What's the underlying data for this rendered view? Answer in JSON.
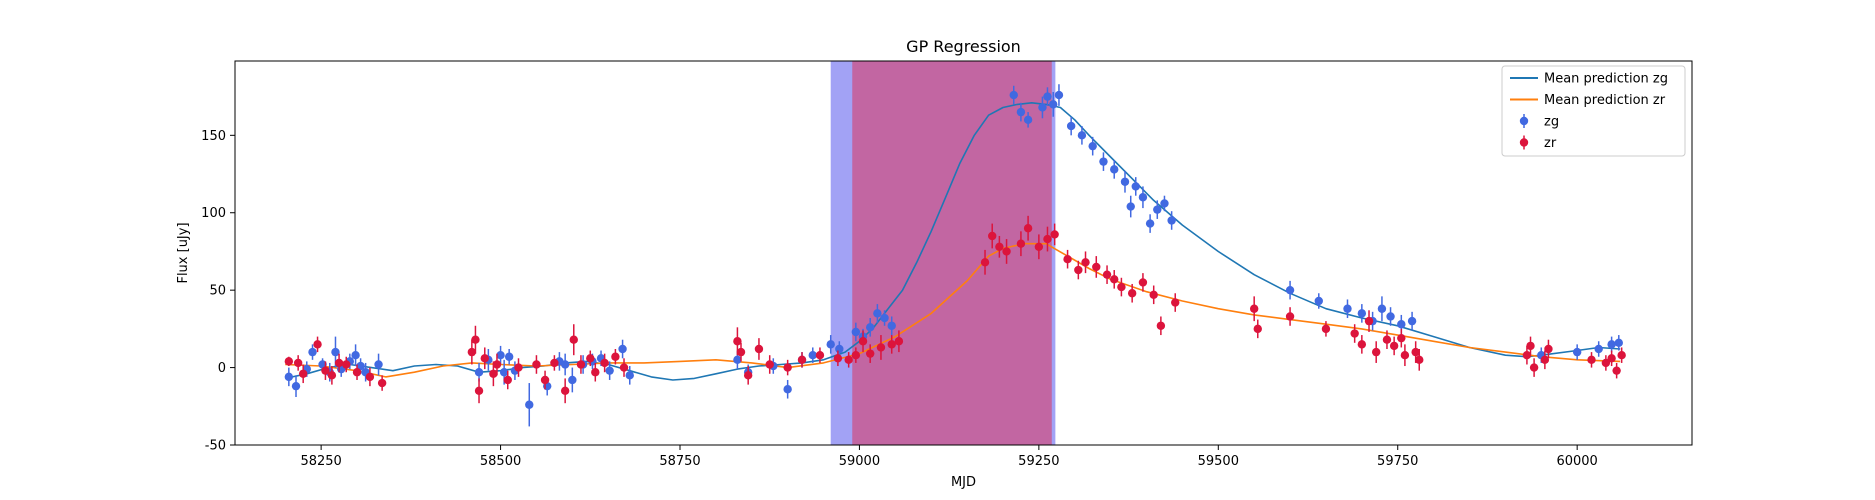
{
  "chart_data": {
    "type": "scatter",
    "title": "GP Regression",
    "xlabel": "MJD",
    "ylabel": "Flux [uJy]",
    "xlim": [
      58130,
      60160
    ],
    "ylim": [
      -50,
      198
    ],
    "xticks": [
      58250,
      58500,
      58750,
      59000,
      59250,
      59500,
      59750,
      60000
    ],
    "yticks": [
      -50,
      0,
      50,
      100,
      150
    ],
    "shaded_regions": [
      {
        "x0": 58960,
        "x1": 59273,
        "color": "#a2a2f5"
      },
      {
        "x0": 58990,
        "x1": 59268,
        "color": "#c266a2"
      }
    ],
    "legend_position": "top-right",
    "series": [
      {
        "name": "Mean prediction zg",
        "kind": "line",
        "color": "#1f77b4",
        "x": [
          58200,
          58230,
          58260,
          58290,
          58320,
          58350,
          58380,
          58410,
          58440,
          58470,
          58500,
          58530,
          58560,
          58590,
          58620,
          58650,
          58680,
          58710,
          58740,
          58770,
          58800,
          58830,
          58860,
          58890,
          58920,
          58950,
          58980,
          59000,
          59020,
          59040,
          59060,
          59080,
          59100,
          59120,
          59140,
          59160,
          59180,
          59200,
          59220,
          59240,
          59260,
          59280,
          59300,
          59320,
          59350,
          59380,
          59410,
          59450,
          59500,
          59550,
          59600,
          59650,
          59700,
          59750,
          59800,
          59850,
          59900,
          59930,
          59950,
          60000,
          60030,
          60060
        ],
        "y": [
          -7,
          -4,
          0,
          2,
          0,
          -2,
          1,
          2,
          1,
          -3,
          -2,
          0,
          1,
          3,
          4,
          2,
          -2,
          -6,
          -8,
          -7,
          -4,
          -1,
          1,
          2,
          3,
          5,
          10,
          17,
          26,
          38,
          50,
          68,
          88,
          110,
          132,
          150,
          163,
          168,
          170,
          171,
          170,
          168,
          160,
          150,
          136,
          122,
          108,
          92,
          75,
          60,
          48,
          38,
          32,
          27,
          20,
          13,
          8,
          7,
          8,
          11,
          13,
          12
        ]
      },
      {
        "name": "Mean prediction zr",
        "kind": "line",
        "color": "#ff7f0e",
        "x": [
          58200,
          58250,
          58300,
          58340,
          58380,
          58420,
          58460,
          58500,
          58550,
          58600,
          58650,
          58700,
          58750,
          58800,
          58850,
          58900,
          58950,
          59000,
          59050,
          59100,
          59150,
          59180,
          59200,
          59230,
          59260,
          59290,
          59320,
          59350,
          59400,
          59450,
          59500,
          59550,
          59600,
          59650,
          59700,
          59750,
          59800,
          59850,
          59900,
          59950,
          60000,
          60060
        ],
        "y": [
          2,
          1,
          -2,
          -6,
          -3,
          1,
          3,
          2,
          1,
          2,
          3,
          3,
          4,
          5,
          3,
          0,
          3,
          9,
          20,
          35,
          56,
          72,
          77,
          80,
          80,
          72,
          64,
          57,
          49,
          43,
          38,
          34,
          31,
          28,
          25,
          21,
          17,
          13,
          10,
          7,
          5,
          4
        ]
      },
      {
        "name": "zg",
        "kind": "errorbar",
        "color": "#4169e1",
        "points": [
          [
            58205,
            -6,
            6
          ],
          [
            58215,
            -12,
            7
          ],
          [
            58230,
            -1,
            5
          ],
          [
            58238,
            10,
            5
          ],
          [
            58252,
            2,
            4
          ],
          [
            58262,
            -3,
            6
          ],
          [
            58270,
            10,
            10
          ],
          [
            58278,
            -1,
            5
          ],
          [
            58290,
            4,
            5
          ],
          [
            58298,
            8,
            7
          ],
          [
            58305,
            1,
            5
          ],
          [
            58312,
            -3,
            6
          ],
          [
            58330,
            2,
            7
          ],
          [
            58470,
            -3,
            6
          ],
          [
            58483,
            5,
            7
          ],
          [
            58500,
            8,
            6
          ],
          [
            58505,
            -3,
            8
          ],
          [
            58512,
            7,
            5
          ],
          [
            58520,
            -2,
            6
          ],
          [
            58540,
            -24,
            14
          ],
          [
            58565,
            -12,
            6
          ],
          [
            58582,
            4,
            6
          ],
          [
            58590,
            2,
            7
          ],
          [
            58600,
            -8,
            8
          ],
          [
            58615,
            2,
            6
          ],
          [
            58628,
            4,
            5
          ],
          [
            58640,
            6,
            5
          ],
          [
            58652,
            -2,
            6
          ],
          [
            58670,
            12,
            6
          ],
          [
            58680,
            -5,
            6
          ],
          [
            58830,
            5,
            6
          ],
          [
            58845,
            -3,
            5
          ],
          [
            58880,
            1,
            5
          ],
          [
            58900,
            -14,
            6
          ],
          [
            58920,
            5,
            5
          ],
          [
            58935,
            8,
            5
          ],
          [
            58960,
            15,
            6
          ],
          [
            58972,
            12,
            5
          ],
          [
            58995,
            23,
            6
          ],
          [
            59005,
            20,
            5
          ],
          [
            59015,
            26,
            6
          ],
          [
            59025,
            35,
            6
          ],
          [
            59035,
            32,
            5
          ],
          [
            59045,
            27,
            6
          ],
          [
            59215,
            176,
            6
          ],
          [
            59225,
            165,
            6
          ],
          [
            59235,
            160,
            5
          ],
          [
            59255,
            168,
            7
          ],
          [
            59262,
            175,
            6
          ],
          [
            59270,
            170,
            8
          ],
          [
            59278,
            176,
            7
          ],
          [
            59295,
            156,
            6
          ],
          [
            59310,
            150,
            6
          ],
          [
            59325,
            143,
            6
          ],
          [
            59340,
            133,
            6
          ],
          [
            59355,
            128,
            6
          ],
          [
            59370,
            120,
            7
          ],
          [
            59378,
            104,
            7
          ],
          [
            59385,
            117,
            6
          ],
          [
            59395,
            110,
            7
          ],
          [
            59405,
            93,
            6
          ],
          [
            59415,
            102,
            6
          ],
          [
            59425,
            106,
            5
          ],
          [
            59435,
            95,
            6
          ],
          [
            59600,
            50,
            6
          ],
          [
            59640,
            43,
            5
          ],
          [
            59680,
            38,
            6
          ],
          [
            59700,
            35,
            6
          ],
          [
            59715,
            30,
            6
          ],
          [
            59728,
            38,
            8
          ],
          [
            59740,
            33,
            6
          ],
          [
            59755,
            28,
            6
          ],
          [
            59770,
            30,
            6
          ],
          [
            59950,
            8,
            5
          ],
          [
            60000,
            10,
            5
          ],
          [
            60030,
            12,
            5
          ],
          [
            60048,
            15,
            5
          ],
          [
            60058,
            16,
            5
          ]
        ]
      },
      {
        "name": "zr",
        "kind": "errorbar",
        "color": "#dc143c",
        "points": [
          [
            58205,
            4,
            3
          ],
          [
            58218,
            3,
            5
          ],
          [
            58225,
            -4,
            6
          ],
          [
            58245,
            15,
            5
          ],
          [
            58256,
            -2,
            6
          ],
          [
            58265,
            -5,
            6
          ],
          [
            58275,
            3,
            6
          ],
          [
            58285,
            2,
            5
          ],
          [
            58300,
            -3,
            5
          ],
          [
            58318,
            -6,
            6
          ],
          [
            58335,
            -10,
            5
          ],
          [
            58460,
            10,
            8
          ],
          [
            58465,
            18,
            9
          ],
          [
            58470,
            -15,
            8
          ],
          [
            58478,
            6,
            7
          ],
          [
            58490,
            -4,
            8
          ],
          [
            58495,
            2,
            7
          ],
          [
            58510,
            -8,
            6
          ],
          [
            58525,
            0,
            6
          ],
          [
            58550,
            2,
            6
          ],
          [
            58562,
            -8,
            6
          ],
          [
            58575,
            3,
            5
          ],
          [
            58590,
            -15,
            8
          ],
          [
            58602,
            18,
            10
          ],
          [
            58612,
            2,
            6
          ],
          [
            58625,
            6,
            5
          ],
          [
            58632,
            -3,
            6
          ],
          [
            58645,
            3,
            6
          ],
          [
            58660,
            7,
            5
          ],
          [
            58672,
            0,
            6
          ],
          [
            58830,
            17,
            9
          ],
          [
            58835,
            10,
            6
          ],
          [
            58845,
            -5,
            6
          ],
          [
            58860,
            12,
            7
          ],
          [
            58875,
            2,
            6
          ],
          [
            58900,
            0,
            5
          ],
          [
            58920,
            5,
            5
          ],
          [
            58945,
            8,
            5
          ],
          [
            58970,
            6,
            5
          ],
          [
            58985,
            5,
            5
          ],
          [
            58995,
            8,
            5
          ],
          [
            59005,
            17,
            7
          ],
          [
            59015,
            9,
            6
          ],
          [
            59030,
            13,
            8
          ],
          [
            59045,
            15,
            6
          ],
          [
            59055,
            17,
            7
          ],
          [
            59175,
            68,
            8
          ],
          [
            59185,
            85,
            8
          ],
          [
            59195,
            78,
            7
          ],
          [
            59205,
            75,
            8
          ],
          [
            59225,
            80,
            8
          ],
          [
            59235,
            90,
            8
          ],
          [
            59250,
            78,
            8
          ],
          [
            59262,
            83,
            8
          ],
          [
            59272,
            86,
            7
          ],
          [
            59290,
            70,
            6
          ],
          [
            59305,
            63,
            6
          ],
          [
            59315,
            68,
            7
          ],
          [
            59330,
            65,
            7
          ],
          [
            59345,
            60,
            6
          ],
          [
            59355,
            57,
            6
          ],
          [
            59365,
            52,
            6
          ],
          [
            59380,
            48,
            6
          ],
          [
            59395,
            55,
            6
          ],
          [
            59410,
            47,
            6
          ],
          [
            59420,
            27,
            6
          ],
          [
            59440,
            42,
            6
          ],
          [
            59550,
            38,
            8
          ],
          [
            59555,
            25,
            6
          ],
          [
            59600,
            33,
            6
          ],
          [
            59650,
            25,
            5
          ],
          [
            59690,
            22,
            6
          ],
          [
            59700,
            15,
            6
          ],
          [
            59710,
            30,
            7
          ],
          [
            59720,
            10,
            7
          ],
          [
            59735,
            18,
            6
          ],
          [
            59745,
            14,
            6
          ],
          [
            59755,
            19,
            6
          ],
          [
            59760,
            8,
            7
          ],
          [
            59775,
            10,
            7
          ],
          [
            59780,
            5,
            7
          ],
          [
            59930,
            8,
            6
          ],
          [
            59935,
            14,
            6
          ],
          [
            59940,
            0,
            6
          ],
          [
            59955,
            5,
            6
          ],
          [
            59960,
            12,
            6
          ],
          [
            60020,
            5,
            5
          ],
          [
            60040,
            3,
            5
          ],
          [
            60048,
            6,
            5
          ],
          [
            60055,
            -2,
            5
          ],
          [
            60062,
            8,
            5
          ]
        ]
      }
    ]
  }
}
